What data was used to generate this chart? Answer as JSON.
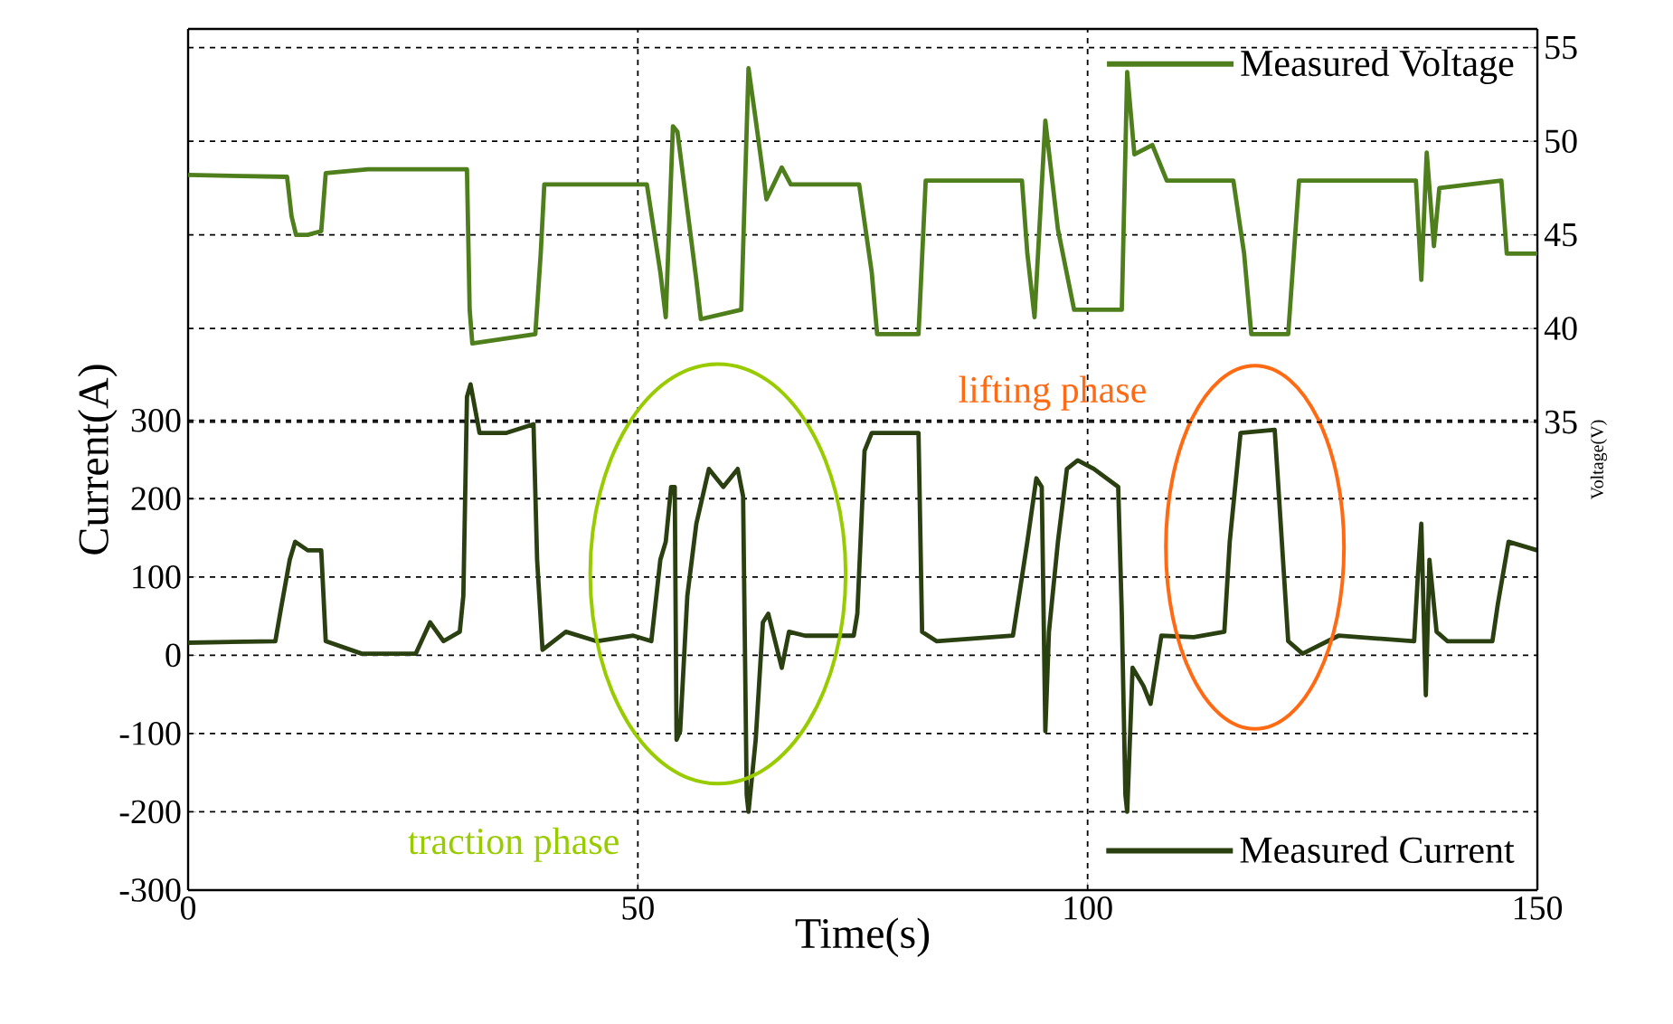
{
  "chart_data": {
    "type": "line",
    "xlabel": "Time(s)",
    "ylabel": "Current(A)",
    "y2label": "Voltage(V)",
    "xlim": [
      0,
      150
    ],
    "xticks": [
      0,
      50,
      100,
      150
    ],
    "ylim": [
      -300,
      800
    ],
    "yticks": [
      -300,
      -200,
      -100,
      0,
      100,
      200,
      300
    ],
    "y2lim": [
      10,
      56
    ],
    "y2ticks": [
      35,
      40,
      45,
      50,
      55
    ],
    "grid": true,
    "legend": "right",
    "annotations": [
      "traction phase",
      "lifting phase"
    ],
    "series": [
      {
        "name": "Measured Voltage",
        "color": "#4e7f1c",
        "axis": "y2",
        "x": [
          0,
          11,
          11.5,
          12,
          13.3,
          14.8,
          15.3,
          20,
          31,
          31.3,
          31.6,
          38.6,
          39.2,
          39.6,
          51,
          52.5,
          53.1,
          53.9,
          54.4,
          56.5,
          57,
          61.5,
          62.3,
          63,
          64.3,
          66,
          67,
          74.6,
          76,
          76.6,
          81.2,
          82,
          92.7,
          93.3,
          94.1,
          95.3,
          96.7,
          98.5,
          103.8,
          104.4,
          105.2,
          107.2,
          108.8,
          116.2,
          117.4,
          118.2,
          122.3,
          123.5,
          136.5,
          137.1,
          137.7,
          138.5,
          139.1,
          146,
          146.6,
          150
        ],
        "values": [
          48.2,
          48.1,
          46,
          45,
          45,
          45.2,
          48.3,
          48.5,
          48.5,
          41,
          39.2,
          39.7,
          44,
          47.7,
          47.7,
          43,
          40.6,
          50.8,
          50.5,
          42.6,
          40.5,
          41,
          53.9,
          51.5,
          46.9,
          48.6,
          47.7,
          47.7,
          43,
          39.7,
          39.7,
          47.9,
          47.9,
          44,
          40.6,
          51.1,
          45.3,
          41,
          41,
          53.7,
          49.3,
          49.8,
          47.9,
          47.9,
          44,
          39.7,
          39.7,
          47.9,
          47.9,
          42.6,
          49.4,
          44.4,
          47.5,
          47.9,
          44,
          44
        ]
      },
      {
        "name": "Measured Current",
        "color": "#2a4010",
        "x": [
          0,
          9.7,
          10.3,
          11.3,
          11.9,
          13.3,
          14.8,
          15.3,
          19.3,
          25.3,
          26.9,
          28.4,
          30.2,
          30.6,
          31,
          31.4,
          32.4,
          35.4,
          38.4,
          38.8,
          39.4,
          42,
          45.4,
          49.5,
          51.5,
          52.5,
          53.1,
          53.7,
          54.1,
          54.3,
          54.7,
          55.5,
          56.5,
          57.9,
          59.5,
          61.1,
          61.7,
          62.1,
          62.3,
          63.1,
          63.9,
          64.5,
          66,
          66.8,
          68.6,
          74,
          74.4,
          75.2,
          76,
          81.2,
          81.6,
          83.2,
          91.7,
          93.3,
          94.3,
          94.9,
          95.3,
          95.7,
          96.7,
          97.7,
          98.9,
          100.7,
          103.4,
          103.8,
          104.2,
          104.4,
          105,
          106.2,
          107,
          108.2,
          111.8,
          115.2,
          115.8,
          117,
          120.8,
          122.3,
          123.9,
          127.9,
          136.3,
          136.7,
          137.1,
          137.6,
          138,
          138.8,
          140,
          145,
          145.6,
          146.8,
          150
        ],
        "values": [
          16,
          18,
          58,
          122,
          145,
          134,
          134,
          18,
          2,
          2,
          42,
          18,
          30,
          76,
          330,
          346,
          284,
          284,
          295,
          122,
          7,
          30,
          18,
          25,
          18,
          122,
          145,
          215,
          215,
          -108,
          -97,
          76,
          168,
          238,
          215,
          238,
          203,
          -178,
          -200,
          -108,
          42,
          53,
          -16,
          30,
          25,
          25,
          53,
          261,
          284,
          284,
          30,
          18,
          25,
          145,
          226,
          215,
          -97,
          30,
          145,
          238,
          249,
          238,
          215,
          53,
          -178,
          -200,
          -16,
          -39,
          -62,
          25,
          23,
          30,
          145,
          284,
          288,
          18,
          2,
          25,
          18,
          99,
          168,
          -51,
          122,
          30,
          18,
          18,
          65,
          145,
          134
        ]
      }
    ]
  }
}
